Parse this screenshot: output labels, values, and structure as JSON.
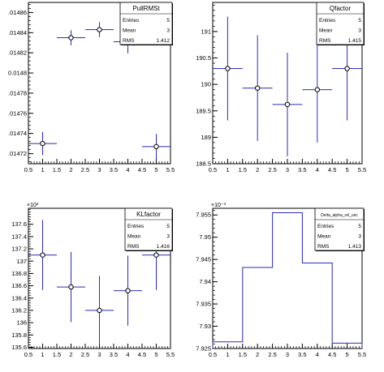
{
  "chart_data": [
    {
      "type": "scatter",
      "style": "errorbars",
      "title": "PullRMSt",
      "stats": [
        {
          "label": "Entries",
          "value": "5"
        },
        {
          "label": "Mean",
          "value": "3"
        },
        {
          "label": "RMS",
          "value": "1.412"
        }
      ],
      "exponent_label": "",
      "xlim": [
        0.5,
        5.5
      ],
      "ylim": [
        0.01471,
        0.01487
      ],
      "xticks": [
        "0.5",
        "1",
        "1.5",
        "2",
        "2.5",
        "3",
        "3.5",
        "4",
        "4.5",
        "5",
        "5.5"
      ],
      "yticks": [
        {
          "v": 0.01472,
          "label": ".01472"
        },
        {
          "v": 0.01474,
          "label": ".01474"
        },
        {
          "v": 0.01476,
          "label": ".01476"
        },
        {
          "v": 0.01478,
          "label": ".01478"
        },
        {
          "v": 0.0148,
          "label": "0.0148"
        },
        {
          "v": 0.01482,
          "label": ".01482"
        },
        {
          "v": 0.01484,
          "label": ".01484"
        },
        {
          "v": 0.01486,
          "label": ".01486"
        }
      ],
      "points": [
        {
          "x": 1,
          "y": 0.01473,
          "xerr": 0.5,
          "yerr": 1.15e-05
        },
        {
          "x": 2,
          "y": 0.014835,
          "xerr": 0.5,
          "yerr": 7.5e-06
        },
        {
          "x": 3,
          "y": 0.014843,
          "xerr": 0.5,
          "yerr": 7.5e-06
        },
        {
          "x": 4,
          "y": 0.014831,
          "xerr": 0.5,
          "yerr": 1.15e-05
        },
        {
          "x": 5,
          "y": 0.014727,
          "xerr": 0.5,
          "yerr": 1.25e-05
        }
      ]
    },
    {
      "type": "scatter",
      "style": "errorbars",
      "title": "Qfactor",
      "stats": [
        {
          "label": "Entries",
          "value": "5"
        },
        {
          "label": "Mean",
          "value": "3"
        },
        {
          "label": "RMS",
          "value": "1.415"
        }
      ],
      "exponent_label": "",
      "xlim": [
        0.5,
        5.5
      ],
      "ylim": [
        188.5,
        191.55
      ],
      "xticks": [
        "0.5",
        "1",
        "1.5",
        "2",
        "2.5",
        "3",
        "3.5",
        "4",
        "4.5",
        "5",
        "5.5"
      ],
      "yticks": [
        {
          "v": 188.5,
          "label": "188.5"
        },
        {
          "v": 189,
          "label": "189"
        },
        {
          "v": 189.5,
          "label": "189.5"
        },
        {
          "v": 190,
          "label": "190"
        },
        {
          "v": 190.5,
          "label": "190.5"
        },
        {
          "v": 191,
          "label": "191"
        }
      ],
      "points": [
        {
          "x": 1,
          "y": 190.3,
          "xerr": 0.5,
          "yerr": 0.98
        },
        {
          "x": 2,
          "y": 189.93,
          "xerr": 0.5,
          "yerr": 1.0
        },
        {
          "x": 3,
          "y": 189.62,
          "xerr": 0.5,
          "yerr": 0.98
        },
        {
          "x": 4,
          "y": 189.9,
          "xerr": 0.5,
          "yerr": 1.0
        },
        {
          "x": 5,
          "y": 190.3,
          "xerr": 0.5,
          "yerr": 0.98
        }
      ]
    },
    {
      "type": "scatter",
      "style": "errorbars",
      "title": "KLfactor",
      "stats": [
        {
          "label": "Entries",
          "value": "5"
        },
        {
          "label": "Mean",
          "value": "3"
        },
        {
          "label": "RMS",
          "value": "1.416"
        }
      ],
      "exponent_label": "×10³",
      "xlim": [
        0.5,
        5.5
      ],
      "ylim": [
        135.58,
        137.86
      ],
      "xticks": [
        "0.5",
        "1",
        "1.5",
        "2",
        "2.5",
        "3",
        "3.5",
        "4",
        "4.5",
        "5",
        "5.5"
      ],
      "yticks": [
        {
          "v": 135.6,
          "label": "135.6"
        },
        {
          "v": 135.8,
          "label": "135.8"
        },
        {
          "v": 136,
          "label": "136"
        },
        {
          "v": 136.2,
          "label": "136.2"
        },
        {
          "v": 136.4,
          "label": "136.4"
        },
        {
          "v": 136.6,
          "label": "136.6"
        },
        {
          "v": 136.8,
          "label": "136.8"
        },
        {
          "v": 137,
          "label": "137"
        },
        {
          "v": 137.2,
          "label": "137.2"
        },
        {
          "v": 137.4,
          "label": "137.4"
        },
        {
          "v": 137.6,
          "label": "137.6"
        }
      ],
      "points": [
        {
          "x": 1,
          "y": 137.1,
          "xerr": 0.5,
          "yerr": 0.57
        },
        {
          "x": 2,
          "y": 136.58,
          "xerr": 0.5,
          "yerr": 0.57
        },
        {
          "x": 3,
          "y": 136.2,
          "xerr": 0.5,
          "yerr": 0.56
        },
        {
          "x": 4,
          "y": 136.52,
          "xerr": 0.5,
          "yerr": 0.57
        },
        {
          "x": 5,
          "y": 137.1,
          "xerr": 0.5,
          "yerr": 0.57
        }
      ]
    },
    {
      "type": "bar",
      "style": "histogram",
      "title": "Delta_alpha_rel_unc",
      "stats": [
        {
          "label": "Entries",
          "value": "5"
        },
        {
          "label": "Mean",
          "value": "3"
        },
        {
          "label": "RMS",
          "value": "1.413"
        }
      ],
      "exponent_label": "×10⁻³",
      "xlim": [
        0.5,
        5.5
      ],
      "ylim": [
        7.925,
        7.9565
      ],
      "xticks": [
        "0.5",
        "1",
        "1.5",
        "2",
        "2.5",
        "3",
        "3.5",
        "4",
        "4.5",
        "5",
        "5.5"
      ],
      "yticks": [
        {
          "v": 7.925,
          "label": "7.925"
        },
        {
          "v": 7.93,
          "label": "7.93"
        },
        {
          "v": 7.935,
          "label": "7.935"
        },
        {
          "v": 7.94,
          "label": "7.94"
        },
        {
          "v": 7.945,
          "label": "7.945"
        },
        {
          "v": 7.95,
          "label": "7.95"
        },
        {
          "v": 7.955,
          "label": "7.955"
        }
      ],
      "bins": [
        {
          "low": 0.5,
          "high": 1.5,
          "value": 7.9265
        },
        {
          "low": 1.5,
          "high": 2.5,
          "value": 7.9432
        },
        {
          "low": 2.5,
          "high": 3.5,
          "value": 7.9555
        },
        {
          "low": 3.5,
          "high": 4.5,
          "value": 7.9442
        },
        {
          "low": 4.5,
          "high": 5.5,
          "value": 7.9262
        }
      ]
    }
  ],
  "colors": {
    "marker_line": "#2a2ab8",
    "frame": "#000000",
    "background": "#ffffff"
  }
}
